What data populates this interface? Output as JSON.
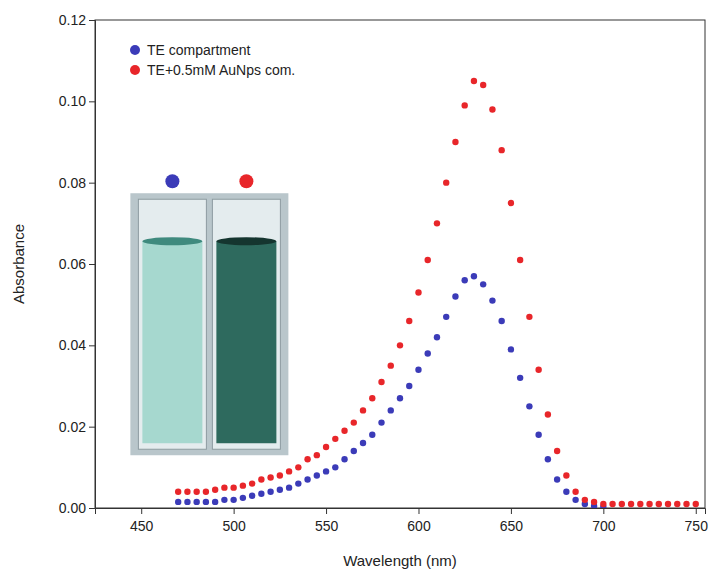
{
  "chart_data": {
    "type": "scatter",
    "x_label": "Wavelength (nm)",
    "y_label": "Absorbance",
    "x": [
      470,
      475,
      480,
      485,
      490,
      495,
      500,
      505,
      510,
      515,
      520,
      525,
      530,
      535,
      540,
      545,
      550,
      555,
      560,
      565,
      570,
      575,
      580,
      585,
      590,
      595,
      600,
      605,
      610,
      615,
      620,
      625,
      630,
      635,
      640,
      645,
      650,
      655,
      660,
      665,
      670,
      675,
      680,
      685,
      690,
      695,
      700,
      705,
      710,
      715,
      720,
      725,
      730,
      735,
      740,
      745,
      750
    ],
    "xlim": [
      425,
      755
    ],
    "xticks": [
      450,
      500,
      550,
      600,
      650,
      700,
      750
    ],
    "ylim": [
      0,
      0.12
    ],
    "yticks": [
      {
        "value": 0,
        "label": "0.00"
      },
      0.02,
      0.04,
      0.06,
      0.08,
      {
        "value": 0.1,
        "label": "0.10"
      },
      0.12
    ],
    "legend": "upper left",
    "marker": "circle",
    "series": [
      {
        "name": "TE compartment",
        "color": "#3b3bb8",
        "values": [
          0.0015,
          0.0015,
          0.0015,
          0.0015,
          0.0015,
          0.002,
          0.002,
          0.0025,
          0.003,
          0.0035,
          0.004,
          0.0045,
          0.005,
          0.006,
          0.007,
          0.008,
          0.009,
          0.01,
          0.012,
          0.014,
          0.016,
          0.018,
          0.021,
          0.024,
          0.027,
          0.03,
          0.034,
          0.038,
          0.042,
          0.047,
          0.052,
          0.056,
          0.057,
          0.055,
          0.051,
          0.046,
          0.039,
          0.032,
          0.025,
          0.018,
          0.012,
          0.007,
          0.004,
          0.002,
          0.001,
          0.0005,
          0.0003,
          null,
          null,
          null,
          null,
          null,
          null,
          null,
          null,
          null,
          null
        ]
      },
      {
        "name": "TE+0.5mM AuNps com.",
        "color": "#e8262a",
        "values": [
          0.004,
          0.004,
          0.004,
          0.004,
          0.0045,
          0.005,
          0.005,
          0.0055,
          0.006,
          0.007,
          0.0075,
          0.008,
          0.009,
          0.01,
          0.012,
          0.013,
          0.015,
          0.017,
          0.019,
          0.021,
          0.024,
          0.027,
          0.031,
          0.035,
          0.04,
          0.046,
          0.053,
          0.061,
          0.07,
          0.08,
          0.09,
          0.099,
          0.105,
          0.104,
          0.098,
          0.088,
          0.075,
          0.061,
          0.047,
          0.034,
          0.023,
          0.014,
          0.008,
          0.004,
          0.002,
          0.0015,
          0.001,
          0.001,
          0.001,
          0.001,
          0.001,
          0.001,
          0.001,
          0.001,
          0.001,
          0.001,
          0.001
        ]
      }
    ]
  }
}
